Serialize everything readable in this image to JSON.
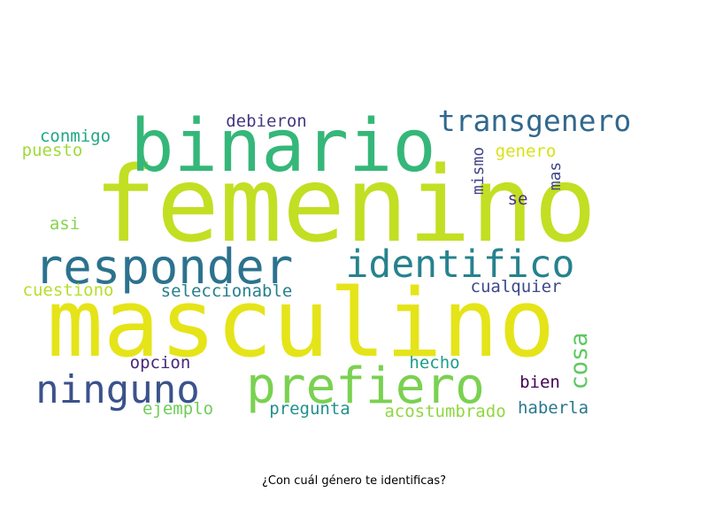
{
  "chart_data": {
    "type": "wordcloud",
    "title": "",
    "caption": "¿Con cuál género te identificas?",
    "words": [
      {
        "text": "femenino",
        "weight": 100,
        "color": "#c2df23"
      },
      {
        "text": "masculino",
        "weight": 95,
        "color": "#e5e419"
      },
      {
        "text": "binario",
        "weight": 65,
        "color": "#35b779"
      },
      {
        "text": "responder",
        "weight": 48,
        "color": "#2c728e"
      },
      {
        "text": "prefiero",
        "weight": 48,
        "color": "#7ad151"
      },
      {
        "text": "ninguno",
        "weight": 40,
        "color": "#3b528b"
      },
      {
        "text": "identifico",
        "weight": 38,
        "color": "#26828e"
      },
      {
        "text": "transgenero",
        "weight": 30,
        "color": "#31688e"
      },
      {
        "text": "cosa",
        "weight": 22,
        "color": "#5ec962"
      },
      {
        "text": "haberla",
        "weight": 16,
        "color": "#2a788e"
      },
      {
        "text": "acostumbrado",
        "weight": 16,
        "color": "#90d743"
      },
      {
        "text": "pregunta",
        "weight": 16,
        "color": "#21918c"
      },
      {
        "text": "ejemplo",
        "weight": 16,
        "color": "#6ece58"
      },
      {
        "text": "hecho",
        "weight": 16,
        "color": "#1f9e89"
      },
      {
        "text": "opcion",
        "weight": 16,
        "color": "#482878"
      },
      {
        "text": "bien",
        "weight": 16,
        "color": "#440154"
      },
      {
        "text": "cuestiono",
        "weight": 16,
        "color": "#b5de2b"
      },
      {
        "text": "seleccionable",
        "weight": 16,
        "color": "#277f8e"
      },
      {
        "text": "cualquier",
        "weight": 16,
        "color": "#3e4989"
      },
      {
        "text": "conmigo",
        "weight": 16,
        "color": "#21a685"
      },
      {
        "text": "puesto",
        "weight": 16,
        "color": "#9fda3a"
      },
      {
        "text": "debieron",
        "weight": 16,
        "color": "#443983"
      },
      {
        "text": "genero",
        "weight": 16,
        "color": "#d8e219"
      },
      {
        "text": "mismo",
        "weight": 14,
        "color": "#414487"
      },
      {
        "text": "mas",
        "weight": 14,
        "color": "#3f4788"
      },
      {
        "text": "se",
        "weight": 15,
        "color": "#46327e"
      },
      {
        "text": "asi",
        "weight": 15,
        "color": "#84d44b"
      }
    ]
  }
}
